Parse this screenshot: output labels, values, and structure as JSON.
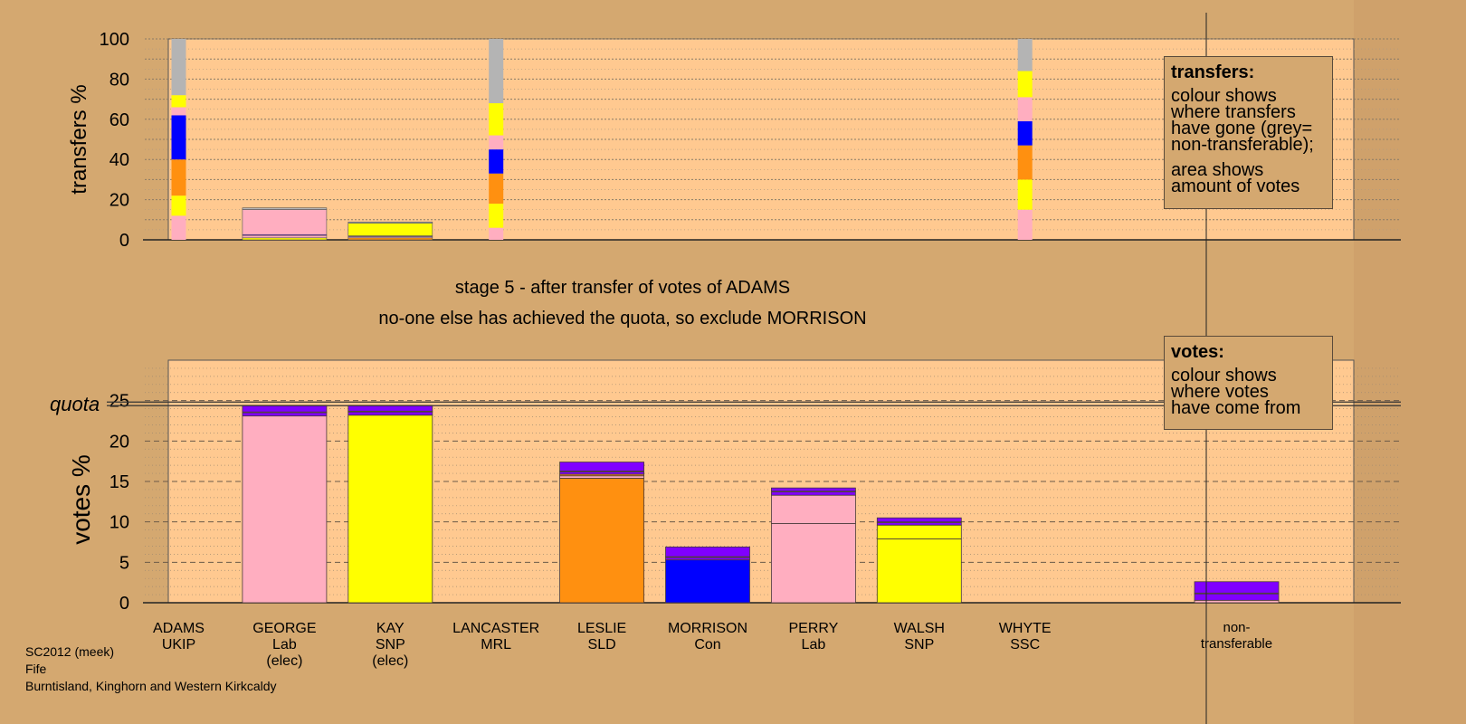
{
  "chart_data": [
    {
      "type": "bar",
      "stacked": true,
      "ylabel": "transfers %",
      "ylim": [
        0,
        100
      ],
      "yticks": [
        0,
        20,
        40,
        60,
        80,
        100
      ],
      "grid": true,
      "bars": [
        {
          "category": "ADAMS",
          "column": 0,
          "thin": true,
          "segments": [
            {
              "color": "#ffaec0",
              "value": 12
            },
            {
              "color": "#ffff00",
              "value": 10
            },
            {
              "color": "#ff9010",
              "value": 18
            },
            {
              "color": "#0000ff",
              "value": 22
            },
            {
              "color": "#ffaec0",
              "value": 4
            },
            {
              "color": "#ffff00",
              "value": 6
            },
            {
              "color": "#b4b4b4",
              "value": 28
            }
          ]
        },
        {
          "category": "GEORGE",
          "column": 1,
          "segments": [
            {
              "color": "#ffff00",
              "value": 1
            },
            {
              "color": "#ffaec0",
              "value": 1.2
            },
            {
              "color": "#8000ff",
              "value": 0.4
            },
            {
              "color": "#ffaec0",
              "value": 12.5
            },
            {
              "color": "#b4b4b4",
              "value": 0.8
            }
          ]
        },
        {
          "category": "KAY",
          "column": 2,
          "segments": [
            {
              "color": "#ff9010",
              "value": 1
            },
            {
              "color": "#ffaec0",
              "value": 0.6
            },
            {
              "color": "#8000ff",
              "value": 0.4
            },
            {
              "color": "#ffff00",
              "value": 6.3
            },
            {
              "color": "#b4b4b4",
              "value": 0.6
            }
          ]
        },
        {
          "category": "LANCASTER",
          "column": 3,
          "thin": true,
          "segments": [
            {
              "color": "#ffaec0",
              "value": 6
            },
            {
              "color": "#ffff00",
              "value": 12
            },
            {
              "color": "#ff9010",
              "value": 15
            },
            {
              "color": "#0000ff",
              "value": 12
            },
            {
              "color": "#ffaec0",
              "value": 7
            },
            {
              "color": "#ffff00",
              "value": 16
            },
            {
              "color": "#b4b4b4",
              "value": 32
            }
          ]
        },
        {
          "category": "WHYTE",
          "column": 8,
          "thin": true,
          "segments": [
            {
              "color": "#ffaec0",
              "value": 15
            },
            {
              "color": "#ffff00",
              "value": 15
            },
            {
              "color": "#ff9010",
              "value": 17
            },
            {
              "color": "#0000ff",
              "value": 12
            },
            {
              "color": "#ffaec0",
              "value": 12
            },
            {
              "color": "#ffff00",
              "value": 13
            },
            {
              "color": "#b4b4b4",
              "value": 16
            }
          ]
        }
      ]
    },
    {
      "type": "bar",
      "stacked": true,
      "ylabel": "votes %",
      "ylim": [
        0,
        30
      ],
      "yticks": [
        0,
        5,
        10,
        15,
        20,
        25
      ],
      "quota": 24.6,
      "quota_label": "quota",
      "grid": true,
      "categories": [
        {
          "name": "ADAMS",
          "party": "UKIP",
          "status": ""
        },
        {
          "name": "GEORGE",
          "party": "Lab",
          "status": "(elec)"
        },
        {
          "name": "KAY",
          "party": "SNP",
          "status": "(elec)"
        },
        {
          "name": "LANCASTER",
          "party": "MRL",
          "status": ""
        },
        {
          "name": "LESLIE",
          "party": "SLD",
          "status": ""
        },
        {
          "name": "MORRISON",
          "party": "Con",
          "status": ""
        },
        {
          "name": "PERRY",
          "party": "Lab",
          "status": ""
        },
        {
          "name": "WALSH",
          "party": "SNP",
          "status": ""
        },
        {
          "name": "WHYTE",
          "party": "SSC",
          "status": ""
        }
      ],
      "nontransferable_label": [
        "non-",
        "transferable"
      ],
      "bars": [
        {
          "category": "ADAMS",
          "column": 0,
          "segments": []
        },
        {
          "category": "GEORGE",
          "column": 1,
          "segments": [
            {
              "color": "#ffaec0",
              "value": 23.1
            },
            {
              "color": "#8000ff",
              "value": 0.4
            },
            {
              "color": "#ffaec0",
              "value": 0.1
            },
            {
              "color": "#8000ff",
              "value": 0.8
            }
          ]
        },
        {
          "category": "KAY",
          "column": 2,
          "segments": [
            {
              "color": "#ffff00",
              "value": 23.2
            },
            {
              "color": "#8000ff",
              "value": 0.4
            },
            {
              "color": "#ffff00",
              "value": 0.1
            },
            {
              "color": "#8000ff",
              "value": 0.7
            }
          ]
        },
        {
          "category": "LANCASTER",
          "column": 3,
          "segments": []
        },
        {
          "category": "LESLIE",
          "column": 4,
          "segments": [
            {
              "color": "#ff9010",
              "value": 15.4
            },
            {
              "color": "#ffaec0",
              "value": 0.3
            },
            {
              "color": "#ff9010",
              "value": 0.2
            },
            {
              "color": "#8000ff",
              "value": 0.3
            },
            {
              "color": "#ffff00",
              "value": 0.1
            },
            {
              "color": "#8000ff",
              "value": 1.1
            }
          ]
        },
        {
          "category": "MORRISON",
          "column": 5,
          "segments": [
            {
              "color": "#0000ff",
              "value": 5.3
            },
            {
              "color": "#8000ff",
              "value": 0.3
            },
            {
              "color": "#ffaec0",
              "value": 0.1
            },
            {
              "color": "#8000ff",
              "value": 1.2
            }
          ]
        },
        {
          "category": "PERRY",
          "column": 6,
          "segments": [
            {
              "color": "#ffaec0",
              "value": 9.8
            },
            {
              "color": "#ffaec0",
              "value": 3.5
            },
            {
              "color": "#8000ff",
              "value": 0.4
            },
            {
              "color": "#ffaec0",
              "value": 0.1
            },
            {
              "color": "#8000ff",
              "value": 0.4
            }
          ]
        },
        {
          "category": "WALSH",
          "column": 7,
          "segments": [
            {
              "color": "#ffff00",
              "value": 7.9
            },
            {
              "color": "#ffff00",
              "value": 1.7
            },
            {
              "color": "#8000ff",
              "value": 0.3
            },
            {
              "color": "#ffaec0",
              "value": 0.1
            },
            {
              "color": "#8000ff",
              "value": 0.5
            }
          ]
        },
        {
          "category": "WHYTE",
          "column": 8,
          "segments": []
        },
        {
          "category": "non-transferable",
          "column": 10,
          "segments": [
            {
              "color": "#ffaec0",
              "value": 0.3
            },
            {
              "color": "#8000ff",
              "value": 0.8
            },
            {
              "color": "#ffaec0",
              "value": 0.1
            },
            {
              "color": "#8000ff",
              "value": 1.4
            }
          ]
        }
      ]
    }
  ],
  "stage_text": "stage 5 - after transfer of votes of ADAMS",
  "stage_subtext": "no-one else has achieved the quota, so exclude MORRISON",
  "legend_transfers": {
    "title": "transfers:",
    "lines1": [
      "colour shows",
      "where transfers",
      "have gone (grey=",
      "non-transferable);"
    ],
    "lines2": [
      "area shows",
      "amount of votes"
    ]
  },
  "legend_votes": {
    "title": "votes:",
    "lines": [
      "colour shows",
      "where votes",
      "have come from"
    ]
  },
  "footer": {
    "line1": "SC2012 (meek)",
    "line2": "Fife",
    "line3": "Burntisland, Kinghorn and Western Kirkcaldy"
  },
  "colors": {
    "background": "#d4a870",
    "plot_background": "#ffc990",
    "grey": "#b4b4b4",
    "pink": "#ffaec0",
    "yellow": "#ffff00",
    "orange": "#ff9010",
    "blue": "#0000ff",
    "purple": "#8000ff"
  }
}
